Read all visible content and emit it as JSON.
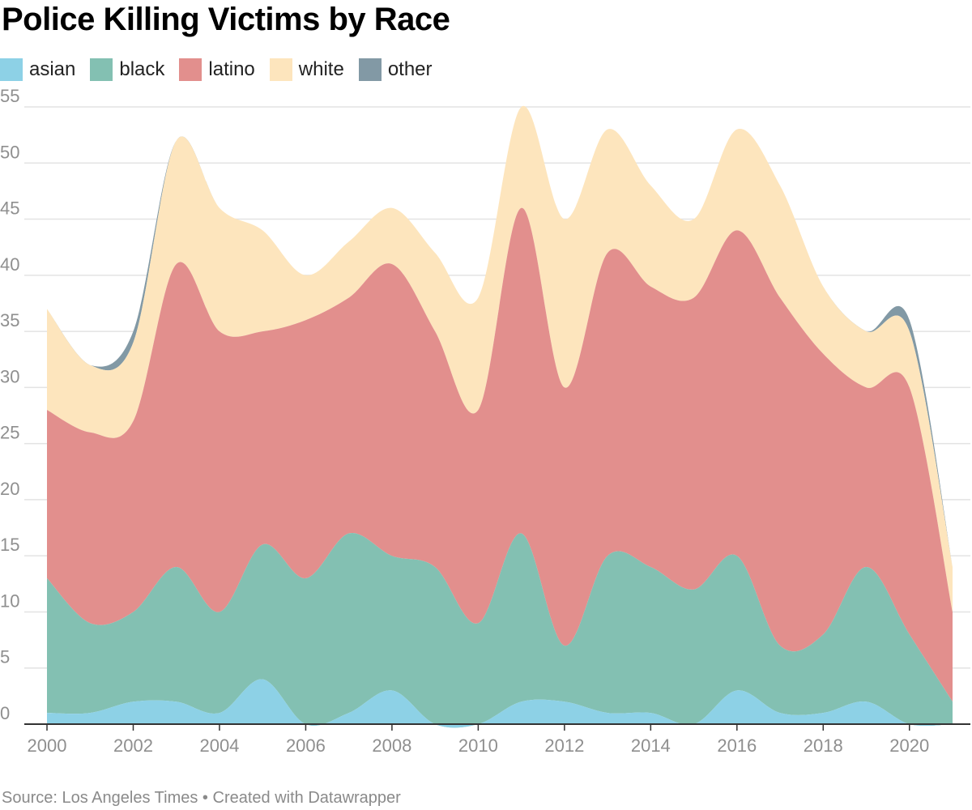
{
  "footer": {
    "source_label": "Source: Los Angeles Times",
    "separator": "•",
    "created_label": "Created with Datawrapper"
  },
  "chart_data": {
    "type": "area",
    "stacked": true,
    "title": "Police Killing Victims by Race",
    "xlabel": "",
    "ylabel": "",
    "x": [
      2000,
      2001,
      2002,
      2003,
      2004,
      2005,
      2006,
      2007,
      2008,
      2009,
      2010,
      2011,
      2012,
      2013,
      2014,
      2015,
      2016,
      2017,
      2018,
      2019,
      2020,
      2021
    ],
    "series": [
      {
        "name": "asian",
        "color": "#8dd1e6",
        "values": [
          1,
          1,
          2,
          2,
          1,
          4,
          0,
          1,
          3,
          0,
          0,
          2,
          2,
          1,
          1,
          0,
          3,
          1,
          1,
          2,
          0,
          0
        ]
      },
      {
        "name": "black",
        "color": "#83c0b2",
        "values": [
          12,
          8,
          8,
          12,
          9,
          12,
          13,
          16,
          12,
          14,
          9,
          15,
          5,
          14,
          13,
          12,
          12,
          6,
          7,
          12,
          8,
          2
        ]
      },
      {
        "name": "latino",
        "color": "#e28f8d",
        "values": [
          15,
          17,
          17,
          27,
          25,
          19,
          23,
          21,
          26,
          21,
          19,
          29,
          23,
          27,
          25,
          26,
          29,
          31,
          25,
          16,
          22,
          8
        ]
      },
      {
        "name": "white",
        "color": "#fde5bd",
        "values": [
          9,
          6,
          7,
          11,
          11,
          9,
          4,
          5,
          5,
          7,
          10,
          9,
          15,
          11,
          9,
          7,
          9,
          10,
          6,
          5,
          5,
          4
        ]
      },
      {
        "name": "other",
        "color": "#8299a5",
        "values": [
          0,
          0,
          1,
          0,
          0,
          0,
          0,
          0,
          0,
          0,
          0,
          0,
          0,
          0,
          0,
          0,
          0,
          0,
          0,
          0,
          1,
          0
        ]
      }
    ],
    "ylim": [
      0,
      55
    ],
    "yticks": [
      0,
      5,
      10,
      15,
      20,
      25,
      30,
      35,
      40,
      45,
      50,
      55
    ],
    "xticks": [
      2000,
      2002,
      2004,
      2006,
      2008,
      2010,
      2012,
      2014,
      2016,
      2018,
      2020
    ],
    "grid": true,
    "legend_position": "top-left",
    "axis_line_color": "#333333",
    "grid_color": "#e3e3e3",
    "tick_label_color": "#8f8f8f"
  }
}
